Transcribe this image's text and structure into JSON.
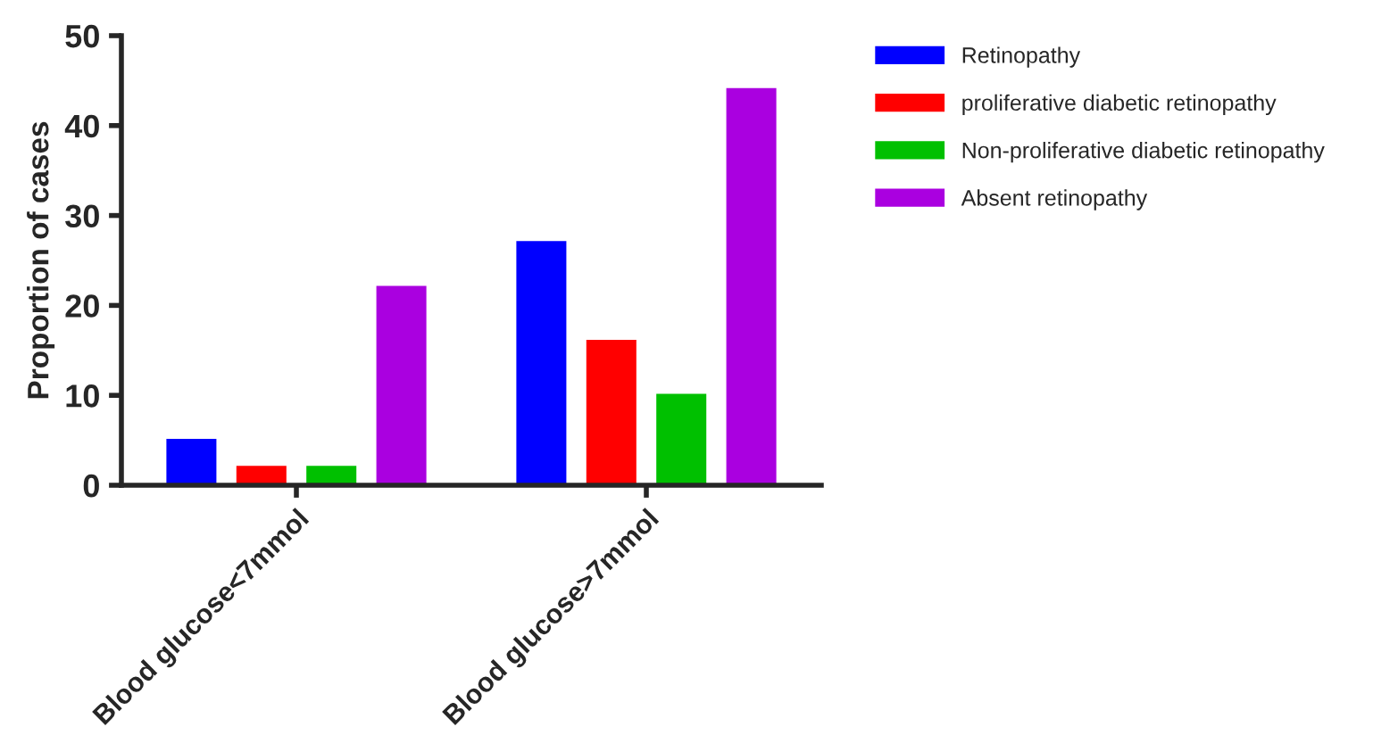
{
  "chart_data": {
    "type": "bar",
    "ylabel": "Proportion of cases",
    "categories": [
      "Blood glucose<7mmol",
      "Blood glucose>7mmol"
    ],
    "series": [
      {
        "name": "Retinopathy",
        "color": "#0000ff",
        "values": [
          5.3,
          27.3
        ]
      },
      {
        "name": "proliferative diabetic retinopathy",
        "color": "#ff0000",
        "values": [
          2.3,
          16.3
        ]
      },
      {
        "name": "Non-proliferative diabetic retinopathy",
        "color": "#00c000",
        "values": [
          2.3,
          10.3
        ]
      },
      {
        "name": "Absent retinopathy",
        "color": "#aa00e0",
        "values": [
          22.3,
          44.3
        ]
      }
    ],
    "ylim": [
      0,
      50
    ],
    "yticks": [
      0,
      10,
      20,
      30,
      40,
      50
    ],
    "grid": false,
    "legend": "top right"
  }
}
